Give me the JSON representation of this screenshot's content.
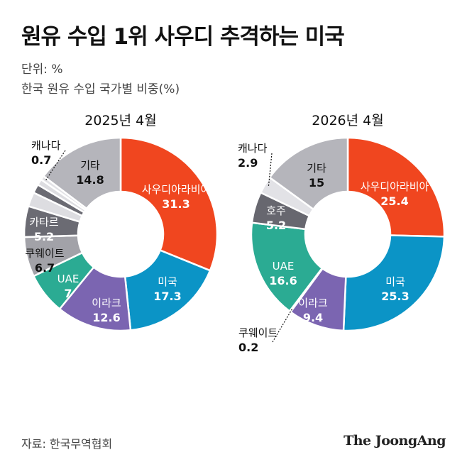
{
  "header": {
    "title": "원유 수입 1위 사우디 추격하는 미국",
    "unit": "단위: %",
    "description": "한국 원유 수입 국가별 비중(%)"
  },
  "footer": {
    "source": "자료: 한국무역협회",
    "brand": "The JoongAng"
  },
  "colors": {
    "saudi": "#f0461f",
    "usa": "#0b94c6",
    "iraq": "#7b65b1",
    "uae": "#2bab93",
    "kuwait": "#a2a2a8",
    "qatar": "#6b6b73",
    "australia": "#67676f",
    "canada": "#e2e2e6",
    "other": "#b5b5bb",
    "faint": "#dddde1"
  },
  "chart_data": [
    {
      "type": "pie",
      "title": "2025년 4월",
      "slices": [
        {
          "key": "saudi",
          "label": "사우디아라비아",
          "value": 31.3
        },
        {
          "key": "usa",
          "label": "미국",
          "value": 17.3
        },
        {
          "key": "iraq",
          "label": "이라크",
          "value": 12.6
        },
        {
          "key": "uae",
          "label": "UAE",
          "value": 7
        },
        {
          "key": "kuwait",
          "label": "쿠웨이트",
          "value": 6.7
        },
        {
          "key": "qatar",
          "label": "카타르",
          "value": 5.2
        },
        {
          "key": "canada",
          "label": "캐나다",
          "value": 0.7
        },
        {
          "key": "other",
          "label": "기타",
          "value": 14.8
        }
      ]
    },
    {
      "type": "pie",
      "title": "2026년 4월",
      "slices": [
        {
          "key": "saudi",
          "label": "사우디아라비아",
          "value": 25.4
        },
        {
          "key": "usa",
          "label": "미국",
          "value": 25.3
        },
        {
          "key": "iraq",
          "label": "이라크",
          "value": 9.4
        },
        {
          "key": "kuwait",
          "label": "쿠웨이트",
          "value": 0.2
        },
        {
          "key": "uae",
          "label": "UAE",
          "value": 16.6
        },
        {
          "key": "australia",
          "label": "호주",
          "value": 5.2
        },
        {
          "key": "canada",
          "label": "캐나다",
          "value": 2.9
        },
        {
          "key": "other",
          "label": "기타",
          "value": 15
        }
      ]
    }
  ]
}
